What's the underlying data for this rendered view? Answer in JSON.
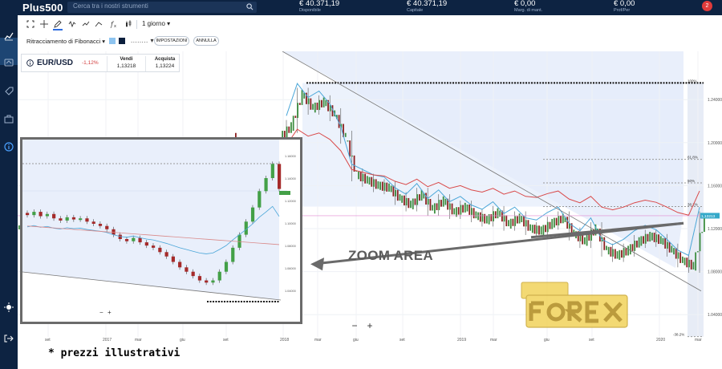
{
  "brand": {
    "name": "Plus500",
    "accent": "#0d2342",
    "loss": "#d23b3b"
  },
  "search": {
    "placeholder": "Cerca tra i nostri strumenti",
    "icon": "search-icon"
  },
  "stats": [
    {
      "value": "€ 40.371,19",
      "label": "Disponibile"
    },
    {
      "value": "€ 40.371,19",
      "label": "Capitale"
    },
    {
      "value": "€ 0,00",
      "label": "Marg. di mant."
    },
    {
      "value": "€ 0,00",
      "label": "Prof/Per"
    }
  ],
  "notifications": {
    "count": "2"
  },
  "sidebar": {
    "icons": [
      "chart-line-icon",
      "exchange-icon",
      "tag-icon",
      "briefcase-icon",
      "info-icon",
      "brightness-icon",
      "logout-icon"
    ]
  },
  "toolbar": {
    "icons": [
      "fullscreen-icon",
      "crosshair-icon",
      "draw-pencil-icon",
      "fx-indicator-icon",
      "trend-icon",
      "line-tool-icon",
      "function-icon",
      "candles-icon"
    ],
    "period": "1 giorno ▾"
  },
  "drawing_bar": {
    "tool": "Ritracciamento di Fibonacci ▾",
    "colors": [
      "#8ec4f0",
      "#0b1f3d"
    ],
    "line_style": "........ ▾",
    "settings_label": "IMPOSTAZIONI",
    "cancel_label": "ANNULLA"
  },
  "instrument": {
    "symbol": "EUR/USD",
    "change": "-1,12%",
    "sell_label": "Vendi",
    "sell_price": "1,13218",
    "buy_label": "Acquista",
    "buy_price": "1,13224"
  },
  "chart_data": {
    "type": "candlestick",
    "x_ticks": [
      "set",
      "2017",
      "mar",
      "giu",
      "set",
      "2018",
      "mar",
      "giu",
      "set",
      "2019",
      "mar",
      "giu",
      "set",
      "2020",
      "mar"
    ],
    "y_ticks": [
      "1.24000",
      "1.20000",
      "1.16000",
      "1.12000",
      "1.08000",
      "1.04000"
    ],
    "ylim": [
      1.02,
      1.27
    ],
    "fib_levels": [
      {
        "label": "100%",
        "value": 1.2555
      },
      {
        "label": "61.8%",
        "value": 1.1845
      },
      {
        "label": "50%",
        "value": 1.1625
      },
      {
        "label": "38.2%",
        "value": 1.1405
      },
      {
        "label": "-38.2%",
        "value": 1.0195
      }
    ],
    "current_price": "1,13213",
    "close": [
      1.215,
      1.245,
      1.232,
      1.238,
      1.226,
      1.205,
      1.17,
      1.165,
      1.16,
      1.158,
      1.148,
      1.142,
      1.152,
      1.138,
      1.146,
      1.135,
      1.14,
      1.132,
      1.128,
      1.135,
      1.124,
      1.13,
      1.12,
      1.118,
      1.125,
      1.13,
      1.115,
      1.108,
      1.12,
      1.1,
      1.095,
      1.1,
      1.108,
      1.113,
      1.109,
      1.1,
      1.09,
      1.085,
      1.13
    ],
    "annotation": "ZOOM AREA",
    "zoom_ticks": [
      "1.16000",
      "1.14000",
      "1.12000",
      "1.10000",
      "1.08000",
      "1.06000",
      "1.04000"
    ],
    "zoom_close": [
      1.118,
      1.121,
      1.117,
      1.119,
      1.115,
      1.113,
      1.116,
      1.114,
      1.115,
      1.112,
      1.11,
      1.108,
      1.105,
      1.1,
      1.096,
      1.094,
      1.097,
      1.093,
      1.09,
      1.088,
      1.084,
      1.08,
      1.075,
      1.07,
      1.066,
      1.062,
      1.058,
      1.056,
      1.058,
      1.066,
      1.075,
      1.088,
      1.1,
      1.112,
      1.125,
      1.14,
      1.152,
      1.165,
      1.142
    ],
    "fib_zoom_levels": [
      {
        "label": "100%",
        "value": 1.1498
      }
    ]
  },
  "zoom_controls": {
    "minus": "−",
    "plus": "+"
  },
  "footnote": "* prezzi illustrativi",
  "watermark": "PLAY FOREX"
}
